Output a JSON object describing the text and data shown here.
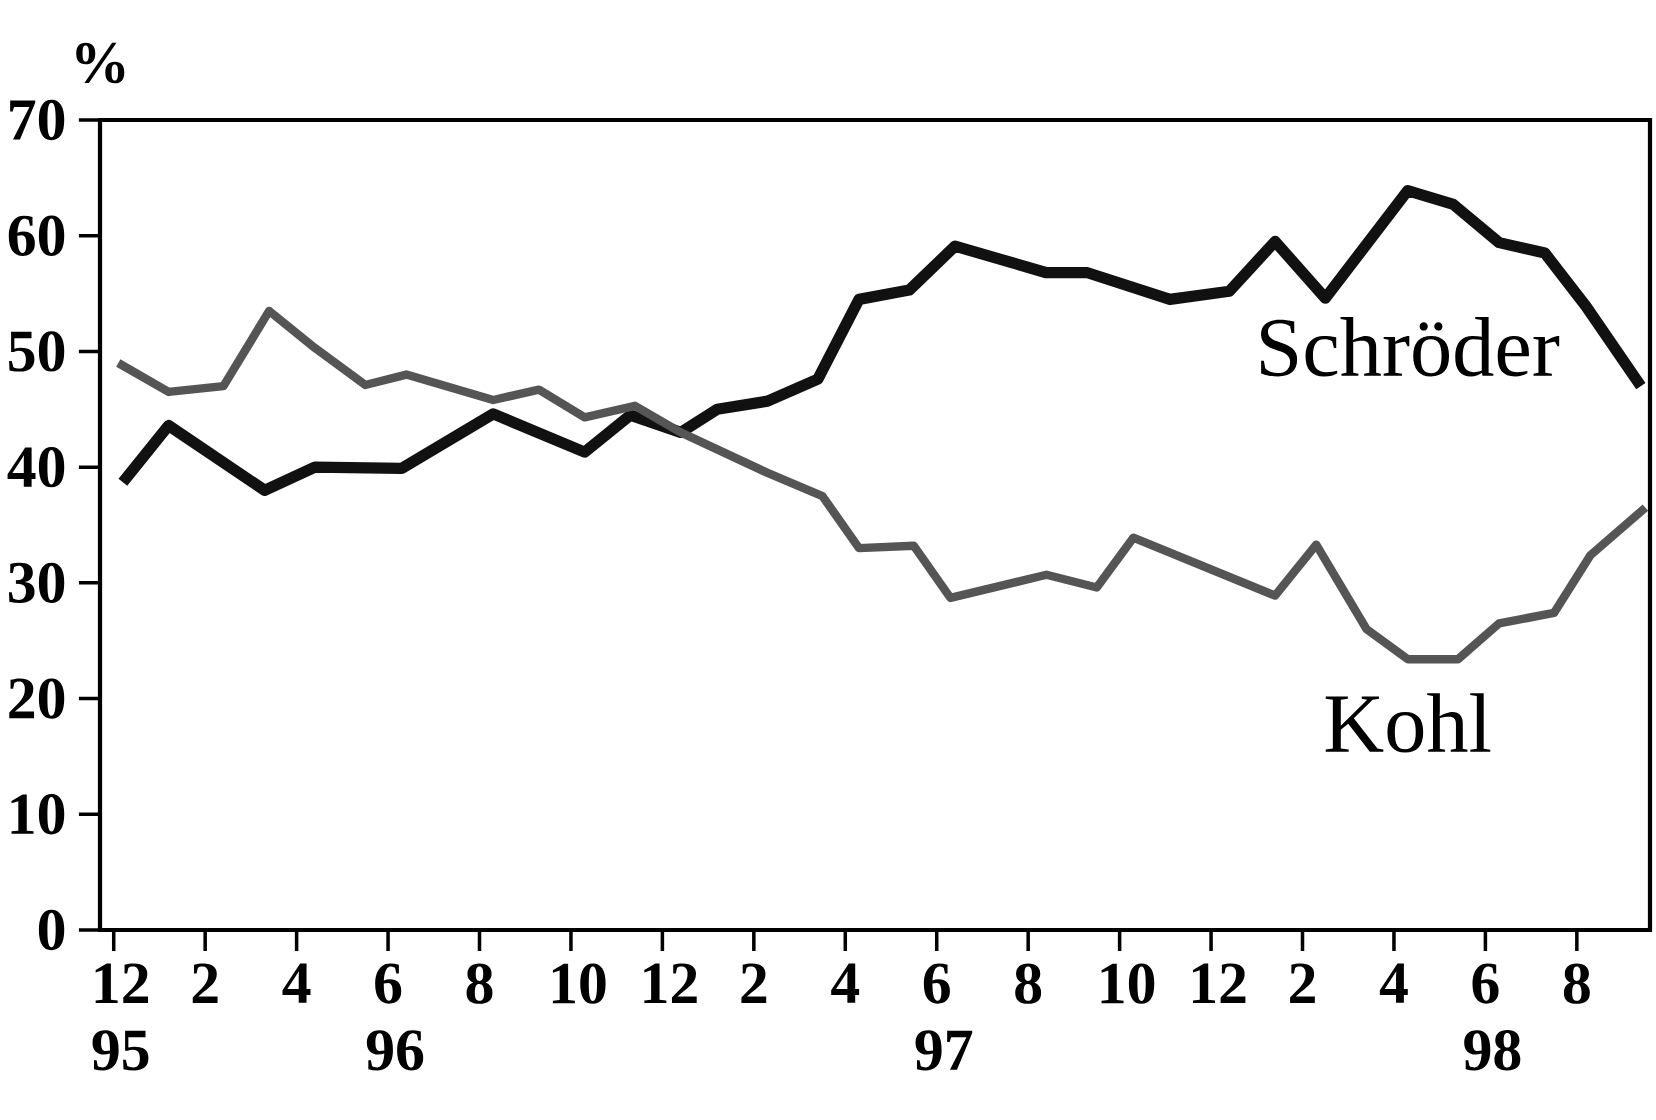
{
  "chart_data": {
    "type": "line",
    "ylabel": "%",
    "ylim": [
      0,
      70
    ],
    "yticks": [
      0,
      10,
      20,
      30,
      40,
      50,
      60,
      70
    ],
    "xlim": [
      "1995-11-22",
      "1998-09-19"
    ],
    "xticks": [
      {
        "value": "1995-12",
        "label": "12 95"
      },
      {
        "value": "1996-02",
        "label": "2"
      },
      {
        "value": "1996-04",
        "label": "4"
      },
      {
        "value": "1996-06",
        "label": "6 96"
      },
      {
        "value": "1996-08",
        "label": "8"
      },
      {
        "value": "1996-10",
        "label": "10"
      },
      {
        "value": "1996-12",
        "label": "12"
      },
      {
        "value": "1997-02",
        "label": "2"
      },
      {
        "value": "1997-04",
        "label": "4"
      },
      {
        "value": "1997-06",
        "label": "6 97"
      },
      {
        "value": "1997-08",
        "label": "8"
      },
      {
        "value": "1997-10",
        "label": "10"
      },
      {
        "value": "1997-12",
        "label": "12"
      },
      {
        "value": "1998-02",
        "label": "2"
      },
      {
        "value": "1998-04",
        "label": "4"
      },
      {
        "value": "1998-06",
        "label": "6 98"
      },
      {
        "value": "1998-08",
        "label": "8"
      }
    ],
    "legend": false,
    "marker": "none",
    "series": [
      {
        "name": "Schröder",
        "color": "#111111",
        "x": [
          "1995-12-07",
          "1996-01-07",
          "1996-03-10",
          "1996-04-13",
          "1996-06-10",
          "1996-08-10",
          "1996-10-10",
          "1996-11-10",
          "1996-12-13",
          "1997-01-07",
          "1997-02-10",
          "1997-03-13",
          "1997-04-10",
          "1997-05-13",
          "1997-06-13",
          "1997-08-13",
          "1997-09-10",
          "1997-11-04",
          "1997-12-13",
          "1998-01-13",
          "1998-02-16",
          "1998-04-10",
          "1998-05-10",
          "1998-06-10",
          "1998-07-10",
          "1998-08-07",
          "1998-09-13"
        ],
        "values": [
          38.7,
          43.6,
          38.0,
          40.0,
          39.9,
          44.6,
          41.3,
          44.5,
          43.0,
          45.0,
          45.7,
          47.6,
          54.5,
          55.3,
          59.1,
          56.8,
          56.8,
          54.5,
          55.2,
          59.5,
          54.6,
          63.9,
          62.7,
          59.4,
          58.5,
          53.9,
          47.0
        ]
      },
      {
        "name": "Kohl",
        "color": "#555555",
        "x": [
          "1995-12-04",
          "1996-01-07",
          "1996-02-13",
          "1996-03-13",
          "1996-04-13",
          "1996-05-16",
          "1996-06-13",
          "1996-08-10",
          "1996-09-10",
          "1996-10-10",
          "1996-11-13",
          "1996-12-13",
          "1997-02-10",
          "1997-03-16",
          "1997-04-10",
          "1997-05-16",
          "1997-06-10",
          "1997-08-13",
          "1997-09-16",
          "1997-10-10",
          "1998-01-13",
          "1998-02-10",
          "1998-03-13",
          "1998-04-10",
          "1998-05-13",
          "1998-06-10",
          "1998-07-16",
          "1998-08-10",
          "1998-09-16"
        ],
        "values": [
          49.0,
          46.5,
          47.0,
          53.5,
          50.3,
          47.1,
          48.0,
          45.8,
          46.7,
          44.3,
          45.3,
          43.0,
          39.5,
          37.5,
          33.0,
          33.2,
          28.7,
          30.7,
          29.6,
          33.9,
          28.9,
          33.3,
          26.0,
          23.4,
          23.4,
          26.5,
          27.4,
          32.4,
          36.5
        ]
      }
    ]
  }
}
